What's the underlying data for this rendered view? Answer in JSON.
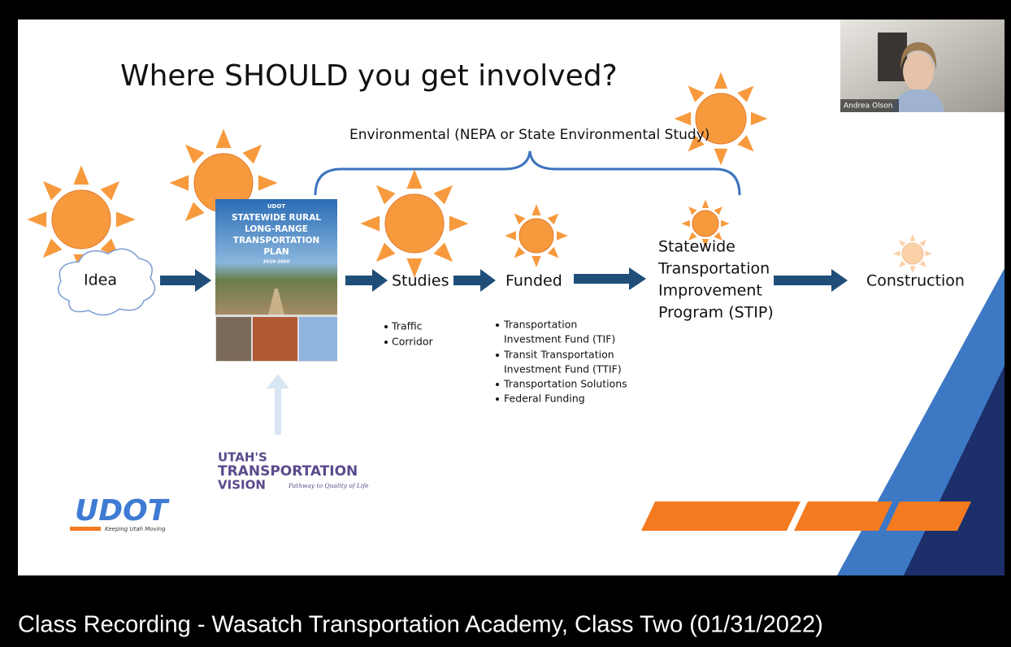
{
  "video": {
    "caption": "Class Recording - Wasatch Transportation Academy, Class Two (01/31/2022)",
    "webcam_name": "Andrea Olson"
  },
  "slide": {
    "title": "Where SHOULD you get involved?",
    "bracket_label": "Environmental (NEPA or State Environmental Study)",
    "steps": {
      "idea": "Idea",
      "studies": "Studies",
      "funded": "Funded",
      "stip": [
        "Statewide",
        "Transportation",
        "Improvement",
        "Program (STIP)"
      ],
      "construction": "Construction"
    },
    "plan_cover": {
      "agency": "UDOT",
      "title_lines": [
        "STATEWIDE RURAL",
        "LONG-RANGE",
        "TRANSPORTATION",
        "PLAN"
      ],
      "years": "2019-2050"
    },
    "studies_bullets": [
      "Traffic",
      "Corridor"
    ],
    "funded_bullets": [
      [
        "Transportation",
        "Investment Fund (TIF)"
      ],
      [
        "Transit Transportation",
        "Investment Fund (TTIF)"
      ],
      [
        "Transportation Solutions"
      ],
      [
        "Federal Funding"
      ]
    ],
    "vision_logo": {
      "lines": [
        "UTAH'S",
        "TRANSPORTATION",
        "VISION"
      ],
      "tagline": "Pathway to Quality of Life"
    },
    "udot_logo": {
      "name": "UDOT",
      "tagline": "Keeping Utah Moving"
    }
  }
}
